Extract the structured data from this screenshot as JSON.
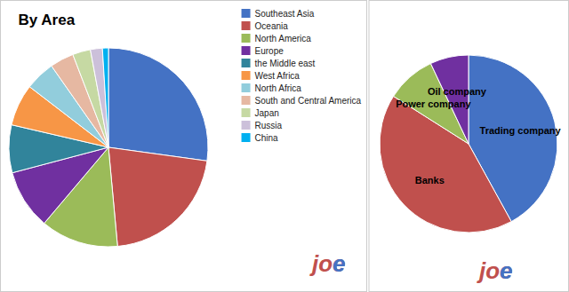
{
  "chart_data": [
    {
      "type": "pie",
      "title": "By Area",
      "categories": [
        "Southeast Asia",
        "Oceania",
        "North America",
        "Europe",
        "the Middle east",
        "West Africa",
        "North Africa",
        "South and Central America",
        "Japan",
        "Russia",
        "China"
      ],
      "values": [
        28,
        22,
        13,
        10,
        8,
        7,
        5,
        4,
        3,
        2,
        1
      ],
      "colors": [
        "#4472C4",
        "#C0504D",
        "#9BBB59",
        "#7030A0",
        "#31849B",
        "#F79646",
        "#92CDDC",
        "#E6B8A2",
        "#C6D9A3",
        "#CCC0DA",
        "#00B0F0"
      ],
      "legend": "upper right",
      "annotations": [
        {
          "text": "joe",
          "color": "#C0504D"
        },
        {
          "text": "e",
          "color": "#4472C4"
        }
      ]
    },
    {
      "type": "pie",
      "categories": [
        "Trading company",
        "Banks",
        "Power company",
        "Oil company"
      ],
      "values": [
        42,
        42,
        9,
        7
      ],
      "colors": [
        "#4472C4",
        "#C0504D",
        "#9BBB59",
        "#7030A0"
      ],
      "annotations": [
        {
          "text": "joe",
          "color": "#C0504D"
        },
        {
          "text": "e",
          "color": "#4472C4"
        }
      ]
    }
  ]
}
